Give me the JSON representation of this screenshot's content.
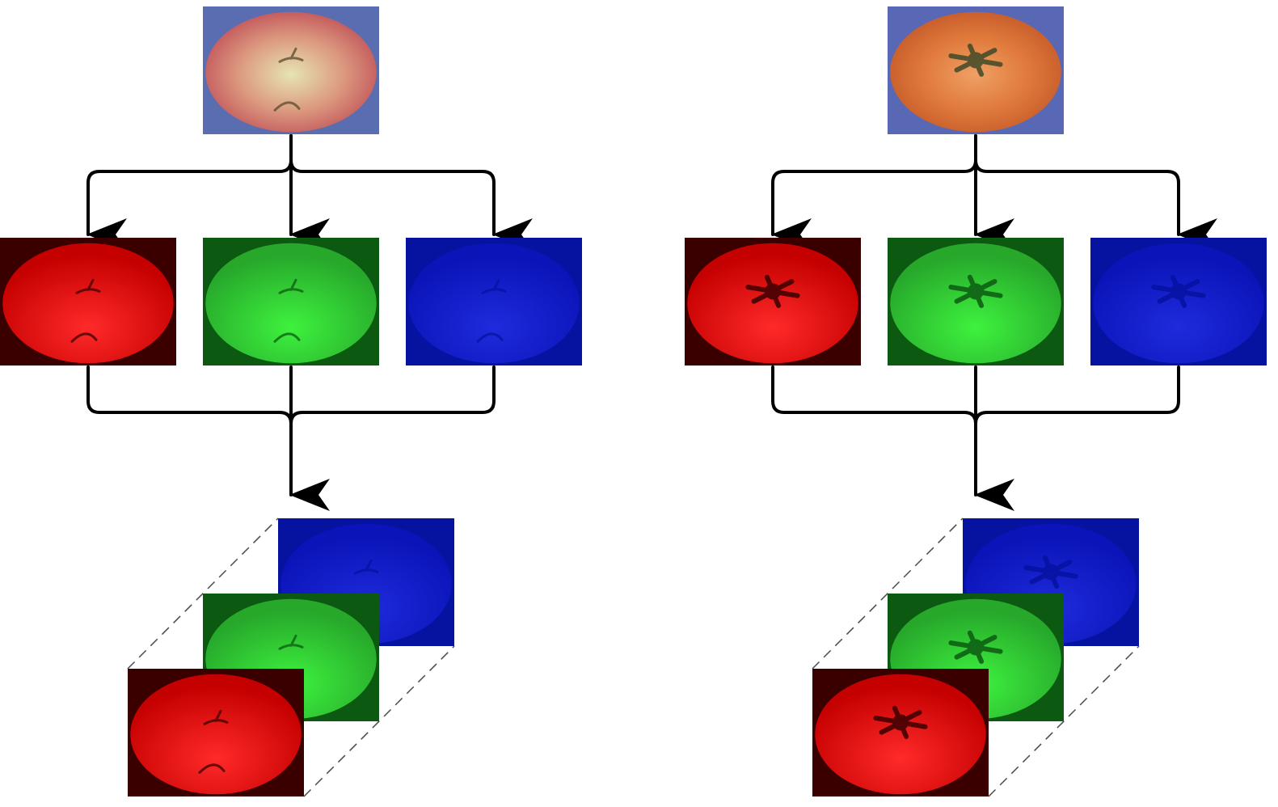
{
  "diagram": {
    "panels": [
      {
        "fruit": "apple",
        "colors": {
          "background": "#5b6db1",
          "skin_outer": "#c2555a",
          "skin_mid": "#dc9a80",
          "skin_inner": "#e6e4b3",
          "stem": "#5a4a2e"
        }
      },
      {
        "fruit": "tomato",
        "colors": {
          "background": "#5968b4",
          "skin_outer": "#c65b2a",
          "skin_mid": "#e07a3c",
          "skin_inner": "#f0a066",
          "stem": "#3f4a28"
        }
      }
    ],
    "channels": [
      {
        "name": "red",
        "background": "#3a0000",
        "fruit_dark": "#c50000",
        "fruit_light": "#ff2a2a"
      },
      {
        "name": "green",
        "background": "#0c5a12",
        "fruit_dark": "#27a82b",
        "fruit_light": "#3ef23e"
      },
      {
        "name": "blue",
        "background": "#0612a0",
        "fruit_dark": "#0a14b8",
        "fruit_light": "#1f2bdc"
      }
    ],
    "arrow_color": "#000000",
    "dash_color": "#4a4a4a"
  }
}
